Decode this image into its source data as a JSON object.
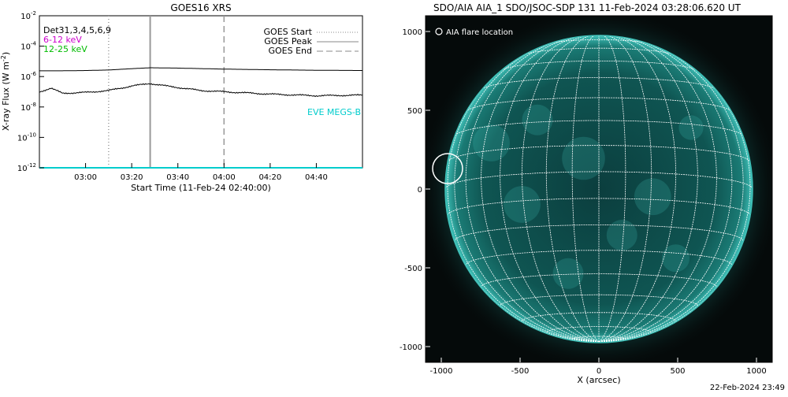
{
  "chart_data": [
    {
      "type": "line",
      "title": "GOES16 XRS",
      "xlabel": "Start Time (11-Feb-24 02:40:00)",
      "ylabel": "X-ray Flux (W m^-2)",
      "y_scale": "log",
      "ylim": [
        1e-12,
        0.01
      ],
      "x_range": [
        "02:40",
        "05:00"
      ],
      "x_ticks": [
        "03:00",
        "03:20",
        "03:40",
        "04:00",
        "04:20",
        "04:40"
      ],
      "y_ticks": [
        "10^-12",
        "10^-10",
        "10^-8",
        "10^-6",
        "10^-4",
        "10^-2"
      ],
      "legend_left": {
        "placement": "top-left",
        "entries": [
          {
            "label": "Det31,3,4,5,6,9",
            "color": "#000000"
          },
          {
            "label": "6-12 keV",
            "color": "#cc00cc"
          },
          {
            "label": "12-25 keV",
            "color": "#00bb00"
          }
        ]
      },
      "legend_right": {
        "placement": "top-right",
        "entries": [
          {
            "label": "GOES Start",
            "style": "dotted",
            "color": "#888888"
          },
          {
            "label": "GOES Peak",
            "style": "solid",
            "color": "#888888"
          },
          {
            "label": "GOES End",
            "style": "dashed",
            "color": "#888888"
          }
        ]
      },
      "eve_label": {
        "text": "EVE MEGS-B",
        "color": "#00cccc"
      },
      "markers": {
        "start": "03:10",
        "peak": "03:28",
        "end": "04:00"
      },
      "series": [
        {
          "color": "#000000",
          "x": [
            "02:40",
            "02:50",
            "03:00",
            "03:10",
            "03:20",
            "03:28",
            "03:40",
            "04:00",
            "04:20",
            "04:40",
            "05:00"
          ],
          "y": [
            2.4e-06,
            2.4e-06,
            2.5e-06,
            2.7e-06,
            3.3e-06,
            3.8e-06,
            3.6e-06,
            3.1e-06,
            2.8e-06,
            2.6e-06,
            2.5e-06
          ]
        },
        {
          "color": "#000000",
          "x": [
            "02:40",
            "02:45",
            "02:50",
            "03:00",
            "03:10",
            "03:20",
            "03:28",
            "03:35",
            "03:50",
            "04:00",
            "04:20",
            "04:40",
            "05:00"
          ],
          "y": [
            1e-07,
            1.7e-07,
            8e-08,
            9e-08,
            1.2e-07,
            2.4e-07,
            3.5e-07,
            2.4e-07,
            1.2e-07,
            1e-07,
            7e-08,
            5.5e-08,
            6e-08
          ]
        },
        {
          "color": "#00cccc",
          "x": [
            "02:40",
            "05:00"
          ],
          "y": [
            1e-12,
            1e-12
          ]
        }
      ]
    },
    {
      "type": "image",
      "title": "SDO/AIA AIA_1 SDO/JSOC-SDP 131 11-Feb-2024 03:28:06.620 UT",
      "xlabel": "X (arcsec)",
      "ylabel": "",
      "xlim": [
        -1100,
        1100
      ],
      "ylim": [
        -1100,
        1100
      ],
      "x_ticks": [
        "-1000",
        "-500",
        "0",
        "500",
        "1000"
      ],
      "y_ticks": [
        "1000",
        "500",
        "0",
        "-500",
        "-1000"
      ],
      "grid": true,
      "legend": {
        "placement": "top-left",
        "label": "AIA flare location"
      },
      "flare_location": {
        "x": -960,
        "y": 130,
        "radius_arcsec": 95
      },
      "disk_radius_arcsec": 975,
      "colors": {
        "background": "#050a0a",
        "disk": "#0f5b5a",
        "limb": "#3fc0b8",
        "grid": "#ffffff"
      }
    }
  ],
  "footer": {
    "timestamp": "22-Feb-2024 23:49"
  }
}
